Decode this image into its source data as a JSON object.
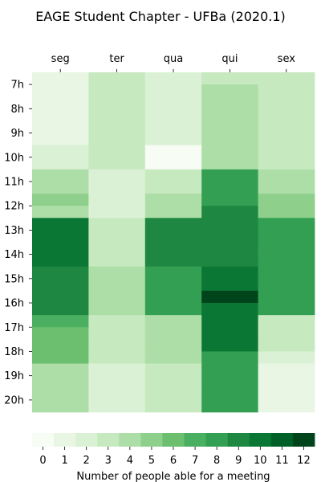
{
  "chart_data": {
    "type": "heatmap",
    "title": "EAGE Student Chapter - UFBa (2020.1)",
    "columns": [
      "seg",
      "ter",
      "qua",
      "qui",
      "sex"
    ],
    "row_labels": [
      "7h",
      "8h",
      "9h",
      "10h",
      "11h",
      "12h",
      "13h",
      "14h",
      "15h",
      "16h",
      "17h",
      "18h",
      "19h",
      "20h"
    ],
    "rows_per_label": 2,
    "values": [
      [
        1,
        3,
        2,
        3,
        3
      ],
      [
        1,
        3,
        2,
        4,
        3
      ],
      [
        1,
        3,
        2,
        4,
        3
      ],
      [
        1,
        3,
        2,
        4,
        3
      ],
      [
        1,
        3,
        2,
        4,
        3
      ],
      [
        1,
        3,
        2,
        4,
        3
      ],
      [
        2,
        3,
        0,
        4,
        3
      ],
      [
        2,
        3,
        0,
        4,
        3
      ],
      [
        4,
        2,
        3,
        8,
        4
      ],
      [
        4,
        2,
        3,
        8,
        4
      ],
      [
        5,
        2,
        4,
        8,
        5
      ],
      [
        4,
        2,
        4,
        9,
        5
      ],
      [
        10,
        3,
        9,
        9,
        8
      ],
      [
        10,
        3,
        9,
        9,
        8
      ],
      [
        10,
        3,
        9,
        9,
        8
      ],
      [
        10,
        3,
        9,
        9,
        8
      ],
      [
        9,
        4,
        8,
        10,
        8
      ],
      [
        9,
        4,
        8,
        10,
        8
      ],
      [
        9,
        4,
        8,
        12,
        8
      ],
      [
        9,
        4,
        8,
        10,
        8
      ],
      [
        7,
        3,
        4,
        10,
        3
      ],
      [
        6,
        3,
        4,
        10,
        3
      ],
      [
        6,
        3,
        4,
        10,
        3
      ],
      [
        6,
        3,
        4,
        8,
        2
      ],
      [
        4,
        2,
        3,
        8,
        1
      ],
      [
        4,
        2,
        3,
        8,
        1
      ],
      [
        4,
        2,
        3,
        8,
        1
      ],
      [
        4,
        2,
        3,
        8,
        1
      ]
    ],
    "colorbar": {
      "label": "Number of people able for a meeting",
      "min": 0,
      "max": 12,
      "ticks": [
        "0",
        "1",
        "2",
        "3",
        "4",
        "5",
        "6",
        "7",
        "8",
        "9",
        "10",
        "11",
        "12"
      ],
      "colors": [
        "#f7fcf5",
        "#e8f6e3",
        "#dbf1d5",
        "#c7e9c0",
        "#addea7",
        "#8ed08b",
        "#6bbf6f",
        "#4aaf61",
        "#339f52",
        "#1e8741",
        "#0b7734",
        "#006028",
        "#00441b"
      ]
    },
    "grid": false
  }
}
